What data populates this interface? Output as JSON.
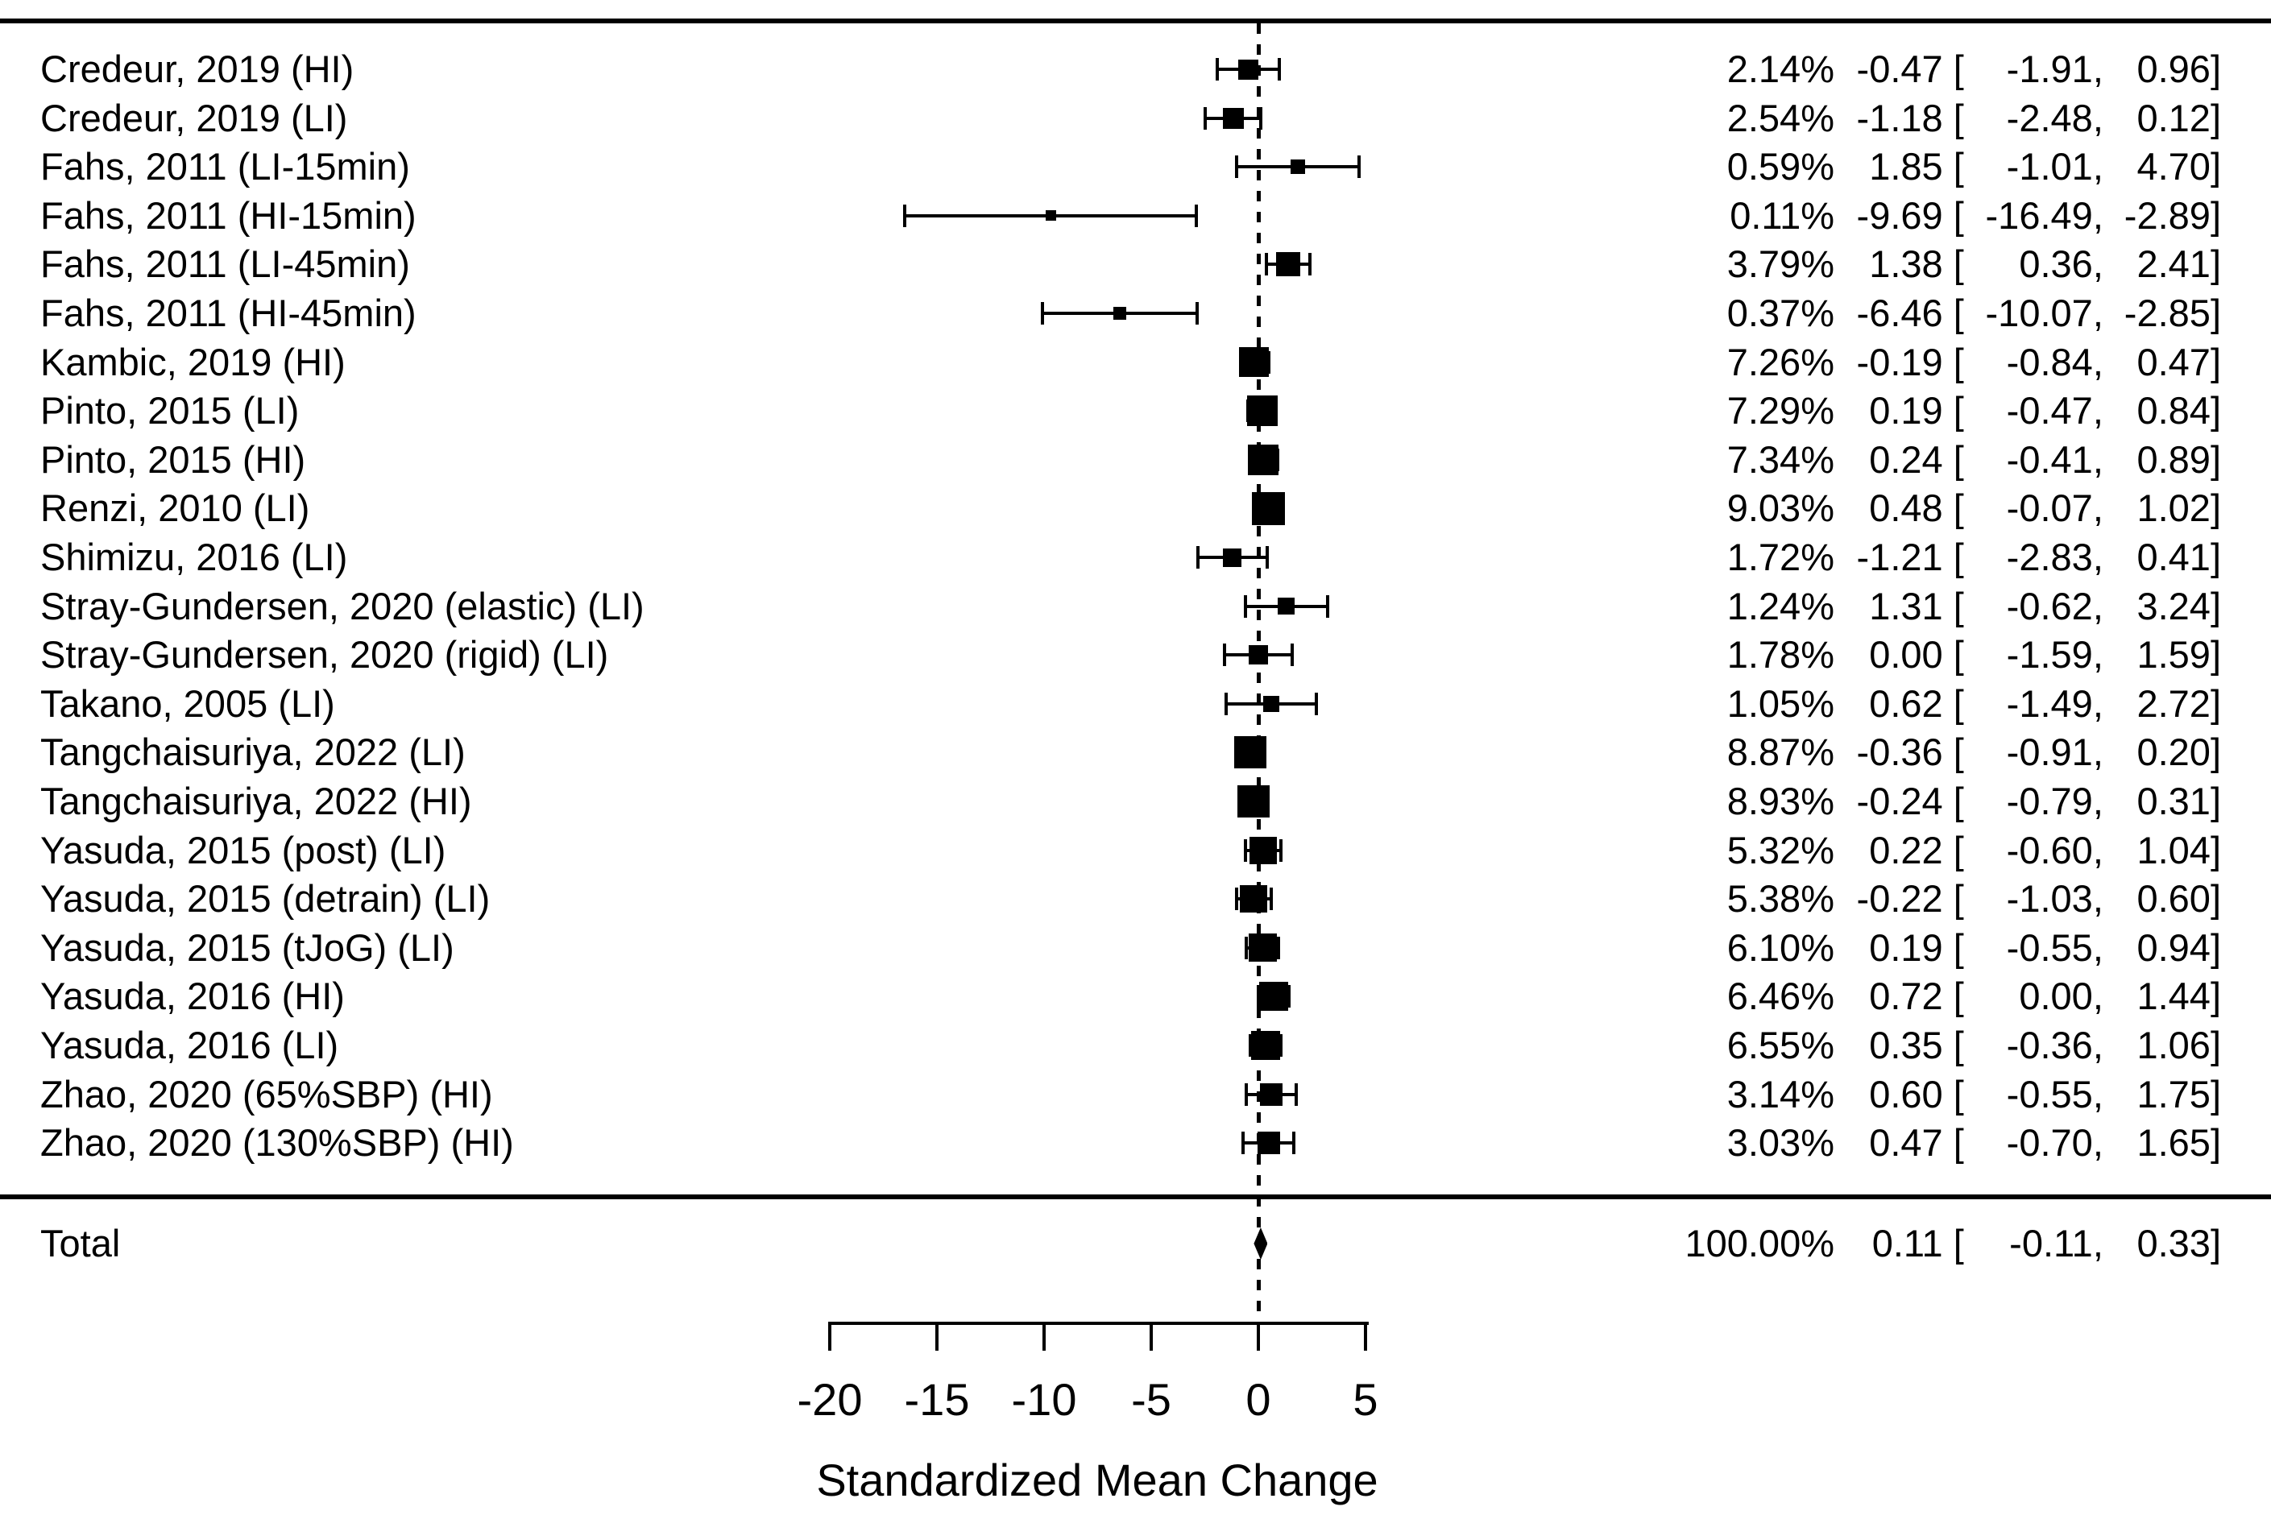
{
  "chart_data": {
    "type": "scatter",
    "subtype": "forest-plot",
    "title": "",
    "xlabel": "Standardized Mean Change",
    "x_ticks": [
      -20,
      -15,
      -10,
      -5,
      0,
      5
    ],
    "xlim": [
      -20,
      5
    ],
    "zero_reference_line": 0,
    "legend": "none",
    "grid": false,
    "studies": [
      {
        "label": "Credeur, 2019 (HI)",
        "weight": "2.14%",
        "est": "-0.47",
        "lo": "-1.91",
        "hi": "0.96"
      },
      {
        "label": "Credeur, 2019 (LI)",
        "weight": "2.54%",
        "est": "-1.18",
        "lo": "-2.48",
        "hi": "0.12"
      },
      {
        "label": "Fahs, 2011 (LI-15min)",
        "weight": "0.59%",
        "est": "1.85",
        "lo": "-1.01",
        "hi": "4.70"
      },
      {
        "label": "Fahs, 2011 (HI-15min)",
        "weight": "0.11%",
        "est": "-9.69",
        "lo": "-16.49",
        "hi": "-2.89"
      },
      {
        "label": "Fahs, 2011 (LI-45min)",
        "weight": "3.79%",
        "est": "1.38",
        "lo": "0.36",
        "hi": "2.41"
      },
      {
        "label": "Fahs, 2011 (HI-45min)",
        "weight": "0.37%",
        "est": "-6.46",
        "lo": "-10.07",
        "hi": "-2.85"
      },
      {
        "label": "Kambic, 2019 (HI)",
        "weight": "7.26%",
        "est": "-0.19",
        "lo": "-0.84",
        "hi": "0.47"
      },
      {
        "label": "Pinto, 2015 (LI)",
        "weight": "7.29%",
        "est": "0.19",
        "lo": "-0.47",
        "hi": "0.84"
      },
      {
        "label": "Pinto, 2015 (HI)",
        "weight": "7.34%",
        "est": "0.24",
        "lo": "-0.41",
        "hi": "0.89"
      },
      {
        "label": "Renzi, 2010 (LI)",
        "weight": "9.03%",
        "est": "0.48",
        "lo": "-0.07",
        "hi": "1.02"
      },
      {
        "label": "Shimizu, 2016 (LI)",
        "weight": "1.72%",
        "est": "-1.21",
        "lo": "-2.83",
        "hi": "0.41"
      },
      {
        "label": "Stray-Gundersen, 2020 (elastic) (LI)",
        "weight": "1.24%",
        "est": "1.31",
        "lo": "-0.62",
        "hi": "3.24"
      },
      {
        "label": "Stray-Gundersen, 2020 (rigid) (LI)",
        "weight": "1.78%",
        "est": "0.00",
        "lo": "-1.59",
        "hi": "1.59"
      },
      {
        "label": "Takano, 2005 (LI)",
        "weight": "1.05%",
        "est": "0.62",
        "lo": "-1.49",
        "hi": "2.72"
      },
      {
        "label": "Tangchaisuriya, 2022 (LI)",
        "weight": "8.87%",
        "est": "-0.36",
        "lo": "-0.91",
        "hi": "0.20"
      },
      {
        "label": "Tangchaisuriya, 2022 (HI)",
        "weight": "8.93%",
        "est": "-0.24",
        "lo": "-0.79",
        "hi": "0.31"
      },
      {
        "label": "Yasuda, 2015 (post) (LI)",
        "weight": "5.32%",
        "est": "0.22",
        "lo": "-0.60",
        "hi": "1.04"
      },
      {
        "label": "Yasuda, 2015 (detrain) (LI)",
        "weight": "5.38%",
        "est": "-0.22",
        "lo": "-1.03",
        "hi": "0.60"
      },
      {
        "label": "Yasuda, 2015 (tJoG) (LI)",
        "weight": "6.10%",
        "est": "0.19",
        "lo": "-0.55",
        "hi": "0.94"
      },
      {
        "label": "Yasuda, 2016 (HI)",
        "weight": "6.46%",
        "est": "0.72",
        "lo": "0.00",
        "hi": "1.44"
      },
      {
        "label": "Yasuda, 2016 (LI)",
        "weight": "6.55%",
        "est": "0.35",
        "lo": "-0.36",
        "hi": "1.06"
      },
      {
        "label": "Zhao, 2020 (65%SBP) (HI)",
        "weight": "3.14%",
        "est": "0.60",
        "lo": "-0.55",
        "hi": "1.75"
      },
      {
        "label": "Zhao, 2020 (130%SBP) (HI)",
        "weight": "3.03%",
        "est": "0.47",
        "lo": "-0.70",
        "hi": "1.65"
      }
    ],
    "total": {
      "label": "Total",
      "weight": "100.00%",
      "est": "0.11",
      "lo": "-0.11",
      "hi": "0.33"
    }
  },
  "colors": {
    "foreground": "#000000",
    "background": "#ffffff"
  }
}
